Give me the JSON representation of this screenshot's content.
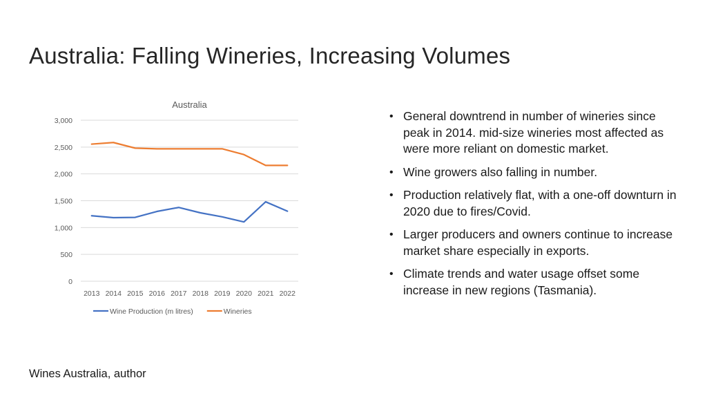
{
  "slide": {
    "title": "Australia: Falling Wineries, Increasing Volumes",
    "source": "Wines Australia, author",
    "bullets": [
      "General downtrend in number of wineries since peak in 2014. mid-size wineries most affected as were more reliant on domestic market.",
      "Wine growers also falling in number.",
      "Production relatively flat, with a one-off downturn in 2020 due to fires/Covid.",
      "Larger producers and owners continue to increase market share especially in exports.",
      "Climate trends and water usage offset some increase in new regions (Tasmania)."
    ],
    "bullet_symbol": "•"
  },
  "chart_data": {
    "type": "line",
    "title": "Australia",
    "xlabel": "",
    "ylabel": "",
    "categories": [
      "2013",
      "2014",
      "2015",
      "2016",
      "2017",
      "2018",
      "2019",
      "2020",
      "2021",
      "2022"
    ],
    "series": [
      {
        "name": "Wine Production (m litres)",
        "color": "#4472C4",
        "values": [
          1220,
          1185,
          1190,
          1300,
          1375,
          1275,
          1200,
          1105,
          1480,
          1305
        ]
      },
      {
        "name": "Wineries",
        "color": "#ED7D31",
        "values": [
          2555,
          2585,
          2480,
          2468,
          2468,
          2468,
          2468,
          2360,
          2158,
          2158
        ]
      }
    ],
    "ylim": [
      0,
      3000
    ],
    "yticks": [
      0,
      500,
      1000,
      1500,
      2000,
      2500,
      3000
    ],
    "ytick_labels": [
      "0",
      "500",
      "1,000",
      "1,500",
      "2,000",
      "2,500",
      "3,000"
    ],
    "grid": true,
    "legend": "bottom",
    "gridline_color": "#D9D9D9",
    "text_color": "#595959"
  }
}
